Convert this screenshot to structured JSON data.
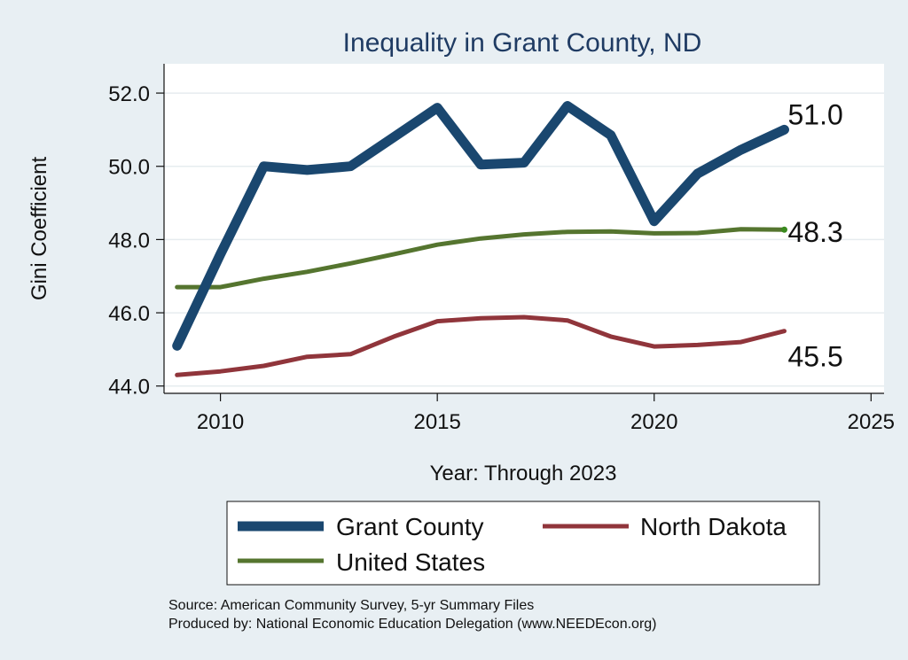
{
  "chart_data": {
    "type": "line",
    "title": "Inequality in Grant County, ND",
    "xlabel": "Year: Through 2023",
    "ylabel": "Gini Coefficient",
    "xlim": [
      2008.7,
      2025.3
    ],
    "ylim": [
      43.8,
      52.8
    ],
    "xticks": [
      2010,
      2015,
      2020,
      2025
    ],
    "xtick_labels": [
      "2010",
      "2015",
      "2020",
      "2025"
    ],
    "yticks": [
      44,
      46,
      48,
      50,
      52
    ],
    "ytick_labels": [
      "44.0",
      "46.0",
      "48.0",
      "50.0",
      "52.0"
    ],
    "grid": true,
    "x": [
      2009,
      2010,
      2011,
      2012,
      2013,
      2014,
      2015,
      2016,
      2017,
      2018,
      2019,
      2020,
      2021,
      2022,
      2023
    ],
    "series": [
      {
        "name": "Grant County",
        "color": "#1a476f",
        "values": [
          45.1,
          47.6,
          50.0,
          49.9,
          50.0,
          50.8,
          51.6,
          50.05,
          50.1,
          51.65,
          50.85,
          48.5,
          49.8,
          50.45,
          51.0
        ],
        "end_label": "51.0"
      },
      {
        "name": "North Dakota",
        "color": "#90353b",
        "values": [
          44.3,
          44.4,
          44.55,
          44.8,
          44.87,
          45.35,
          45.77,
          45.85,
          45.88,
          45.79,
          45.35,
          45.08,
          45.12,
          45.2,
          45.5
        ],
        "end_label": "45.5"
      },
      {
        "name": "United States",
        "color": "#55752f",
        "values": [
          46.7,
          46.7,
          46.93,
          47.12,
          47.35,
          47.6,
          47.86,
          48.03,
          48.14,
          48.21,
          48.22,
          48.17,
          48.18,
          48.28,
          48.27
        ],
        "end_label": "48.3"
      }
    ],
    "legend": {
      "position": "bottom",
      "entries": [
        "Grant County",
        "North Dakota",
        "United States"
      ]
    }
  },
  "source": {
    "line1": "Source: American Community Survey, 5-yr Summary Files",
    "line2": "Produced by: National Economic Education Delegation (www.NEEDEcon.org)"
  }
}
